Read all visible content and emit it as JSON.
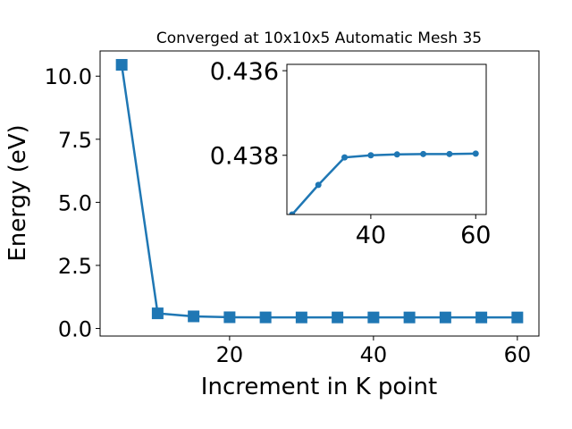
{
  "chart_data": [
    {
      "type": "line",
      "title": "Converged at 10x10x5 Automatic Mesh 35",
      "xlabel": "Increment in K point",
      "ylabel": "Energy (eV)",
      "xlim": [
        2,
        63
      ],
      "ylim": [
        -0.3,
        11.0
      ],
      "xticks": [
        20,
        40,
        60
      ],
      "xtick_labels": [
        "20",
        "40",
        "60"
      ],
      "yticks": [
        0.0,
        2.5,
        5.0,
        7.5,
        10.0
      ],
      "ytick_labels": [
        "0.0",
        "2.5",
        "5.0",
        "7.5",
        "10.0"
      ],
      "grid": false,
      "marker": "square",
      "color": "#1f77b4",
      "series": [
        {
          "x": [
            5,
            10,
            15,
            20,
            25,
            30,
            35,
            40,
            45,
            50,
            55,
            60
          ],
          "values": [
            10.45,
            0.6,
            0.48,
            0.445,
            0.44,
            0.438,
            0.438,
            0.438,
            0.4375,
            0.4375,
            0.4375,
            0.4375
          ]
        }
      ]
    },
    {
      "type": "line",
      "inset": true,
      "xlim": [
        24,
        62
      ],
      "ylim": [
        0.4394,
        0.43585
      ],
      "y_inverted": true,
      "xticks": [
        40,
        60
      ],
      "xtick_labels": [
        "40",
        "60"
      ],
      "yticks": [
        0.436,
        0.438
      ],
      "ytick_labels": [
        "0.436",
        "0.438"
      ],
      "grid": false,
      "marker": "circle",
      "color": "#1f77b4",
      "series": [
        {
          "x": [
            25,
            30,
            35,
            40,
            45,
            50,
            55,
            60
          ],
          "values": [
            0.4394,
            0.4387,
            0.43805,
            0.438,
            0.43798,
            0.43797,
            0.43797,
            0.43796
          ]
        }
      ]
    }
  ]
}
